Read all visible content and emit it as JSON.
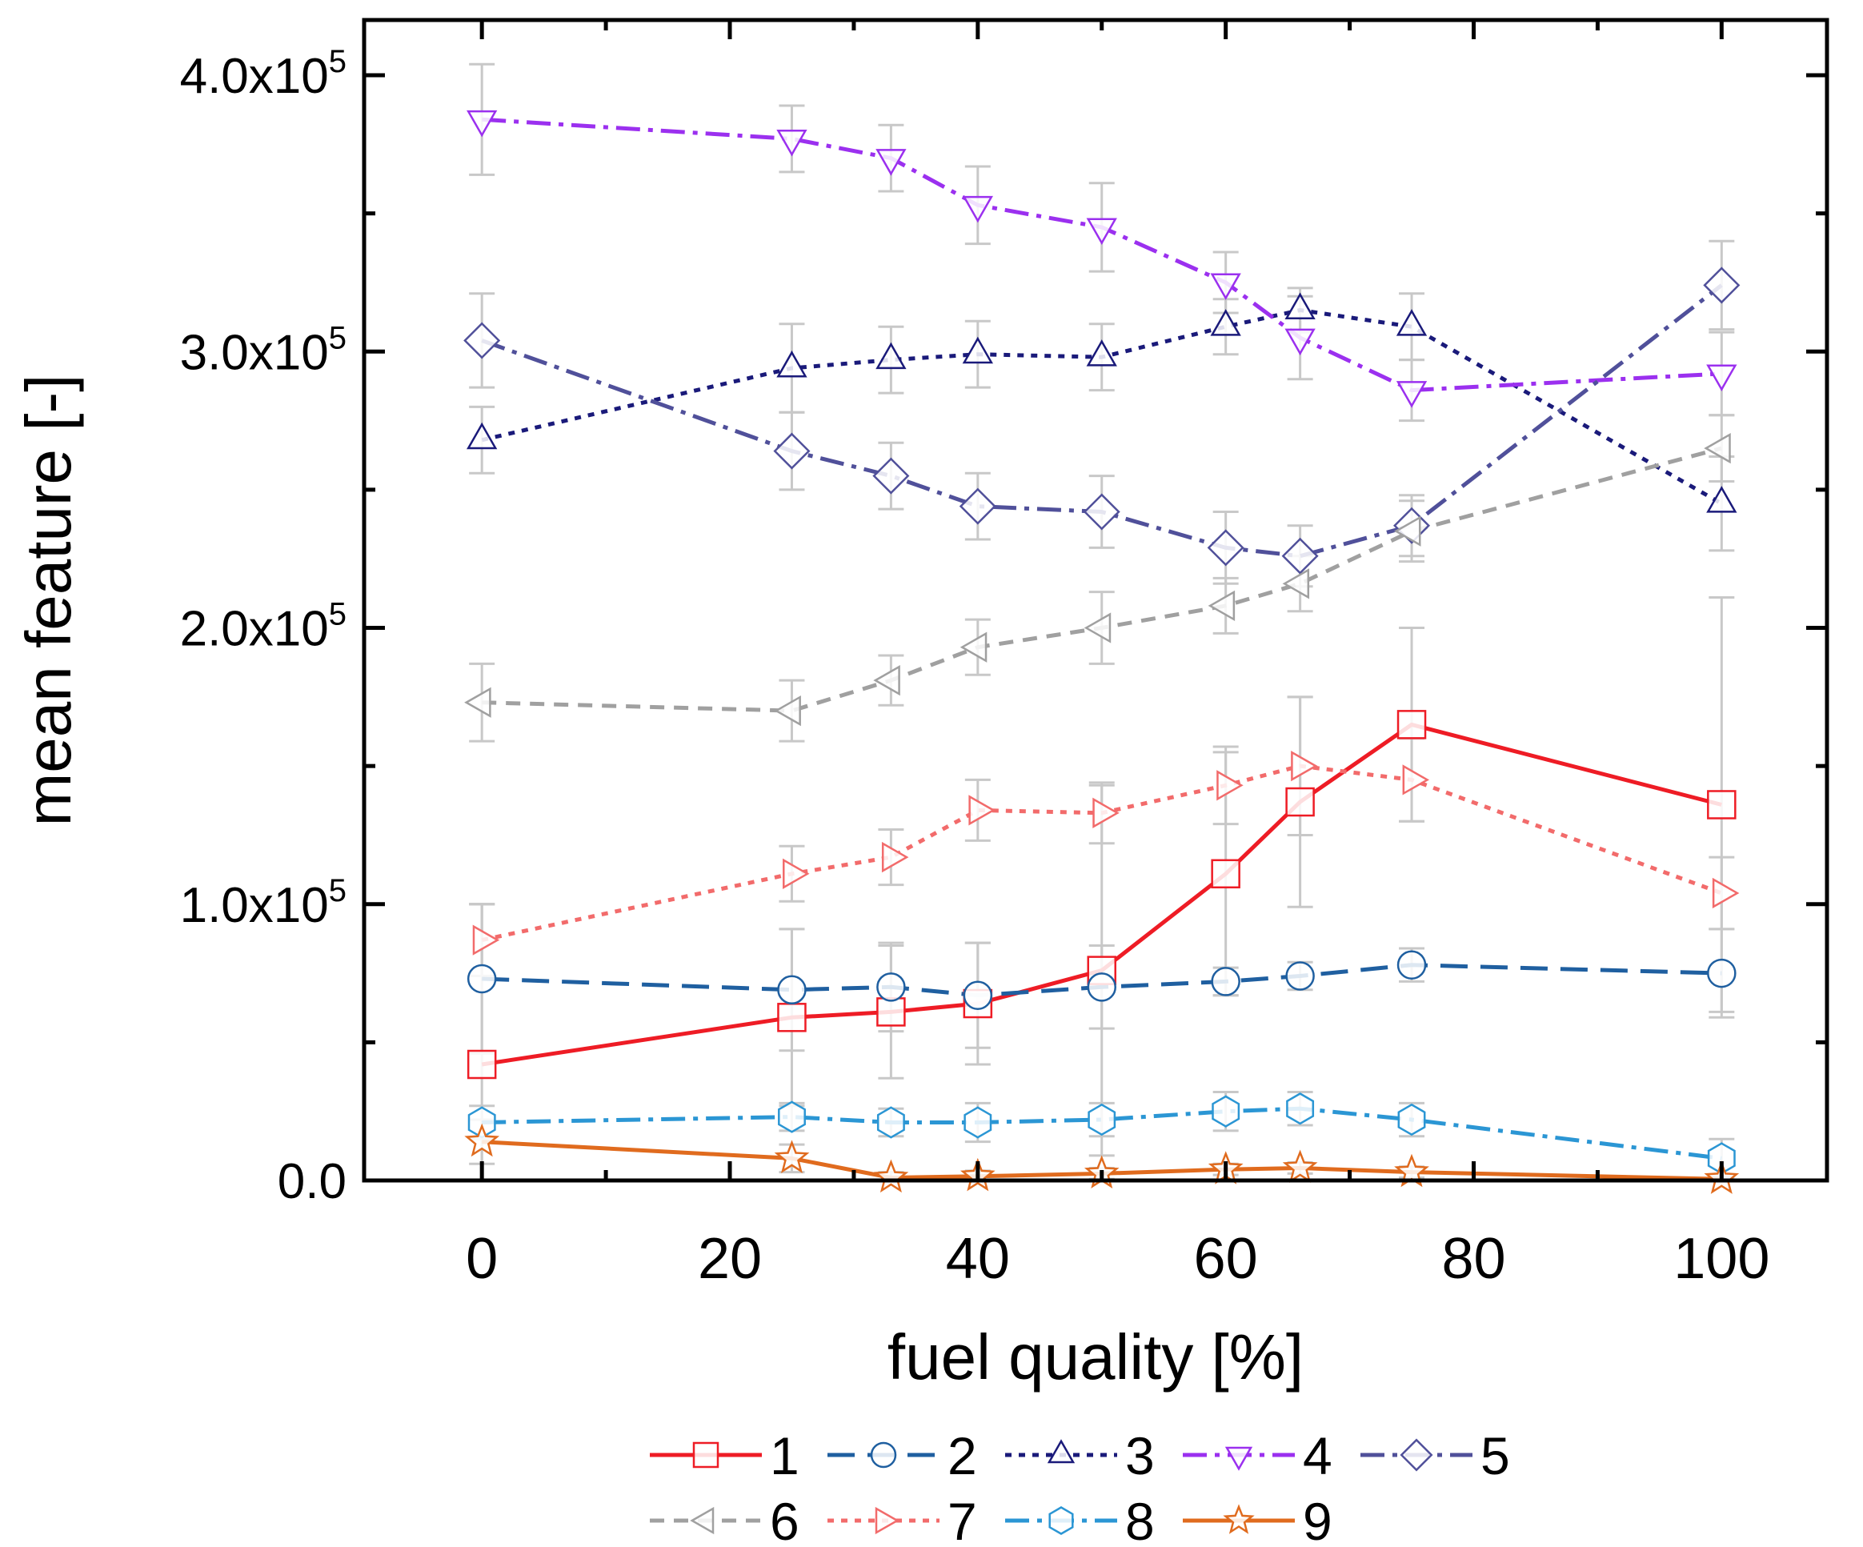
{
  "chart_data": {
    "type": "line",
    "title": "",
    "xlabel": "fuel quality [%]",
    "ylabel": "mean feature [-]",
    "xlim": [
      -9.5,
      108.5
    ],
    "ylim": [
      0,
      420000
    ],
    "x_ticks": [
      0,
      20,
      40,
      60,
      80,
      100
    ],
    "x_tick_labels": [
      "0",
      "20",
      "40",
      "60",
      "80",
      "100"
    ],
    "y_ticks": [
      0,
      100000,
      200000,
      300000,
      400000
    ],
    "y_tick_labels": [
      {
        "mantissa": "0.0",
        "exponent": ""
      },
      {
        "mantissa": "1.0x10",
        "exponent": "5"
      },
      {
        "mantissa": "2.0x10",
        "exponent": "5"
      },
      {
        "mantissa": "3.0x10",
        "exponent": "5"
      },
      {
        "mantissa": "4.0x10",
        "exponent": "5"
      }
    ],
    "x": [
      0,
      25,
      33,
      40,
      50,
      60,
      66,
      75,
      100
    ],
    "series": [
      {
        "name": "1",
        "color": "#ee1c25",
        "marker": "square",
        "dash": "solid",
        "values": [
          42000,
          59000,
          61000,
          64000,
          76000,
          111000,
          137000,
          165000,
          136000
        ],
        "errors": [
          58000,
          32000,
          24000,
          22000,
          67000,
          44000,
          38000,
          35000,
          75000
        ]
      },
      {
        "name": "2",
        "color": "#1f5fa0",
        "marker": "circle",
        "dash": "longdash",
        "values": [
          73000,
          69000,
          70000,
          67000,
          70000,
          72000,
          74000,
          78000,
          75000
        ],
        "errors": [
          27000,
          22000,
          16000,
          19000,
          15000,
          5000,
          5000,
          6000,
          16000
        ]
      },
      {
        "name": "3",
        "color": "#1a1a7a",
        "marker": "triangle-up",
        "dash": "dot",
        "values": [
          268000,
          294000,
          297000,
          299000,
          298000,
          309000,
          315000,
          309000,
          245000
        ],
        "errors": [
          12000,
          16000,
          12000,
          12000,
          12000,
          10000,
          8000,
          12000,
          17000
        ]
      },
      {
        "name": "4",
        "color": "#9b30ef",
        "marker": "triangle-down",
        "dash": "dashdot",
        "values": [
          384000,
          377000,
          370000,
          353000,
          345000,
          325000,
          305000,
          286000,
          292000
        ],
        "errors": [
          20000,
          12000,
          12000,
          14000,
          16000,
          11000,
          15000,
          11000,
          15000
        ]
      },
      {
        "name": "5",
        "color": "#50509a",
        "marker": "diamond",
        "dash": "dashdot",
        "values": [
          304000,
          264000,
          255000,
          244000,
          242000,
          229000,
          226000,
          237000,
          324000
        ],
        "errors": [
          17000,
          14000,
          12000,
          12000,
          13000,
          13000,
          11000,
          11000,
          16000
        ]
      },
      {
        "name": "6",
        "color": "#a0a0a0",
        "marker": "triangle-left",
        "dash": "dash",
        "values": [
          173000,
          170000,
          181000,
          193000,
          200000,
          208000,
          216000,
          235000,
          265000
        ],
        "errors": [
          14000,
          11000,
          9000,
          10000,
          13000,
          10000,
          10000,
          11000,
          12000
        ]
      },
      {
        "name": "7",
        "color": "#f26b6b",
        "marker": "triangle-right",
        "dash": "dot",
        "values": [
          87000,
          111000,
          117000,
          134000,
          133000,
          143000,
          150000,
          145000,
          104000
        ],
        "errors": [
          13000,
          10000,
          10000,
          11000,
          11000,
          14000,
          25000,
          15000,
          13000
        ]
      },
      {
        "name": "8",
        "color": "#2b96d4",
        "marker": "hexagon",
        "dash": "dashdot",
        "values": [
          21000,
          23000,
          21000,
          21000,
          22000,
          25000,
          26000,
          22000,
          8000
        ],
        "errors": [
          6000,
          5000,
          5000,
          7000,
          6000,
          7000,
          6000,
          6000,
          7000
        ]
      },
      {
        "name": "9",
        "color": "#e06b1e",
        "marker": "star",
        "dash": "solid",
        "values": [
          14000,
          8000,
          1000,
          1500,
          2500,
          4000,
          4500,
          3000,
          500
        ],
        "errors": [
          8000,
          5000,
          2000,
          2000,
          2000,
          2000,
          2000,
          2000,
          1000
        ]
      }
    ],
    "legend": {
      "placement": "bottom",
      "rows": [
        [
          "1",
          "2",
          "3",
          "4",
          "5"
        ],
        [
          "6",
          "7",
          "8",
          "9"
        ]
      ]
    },
    "grid": false
  }
}
